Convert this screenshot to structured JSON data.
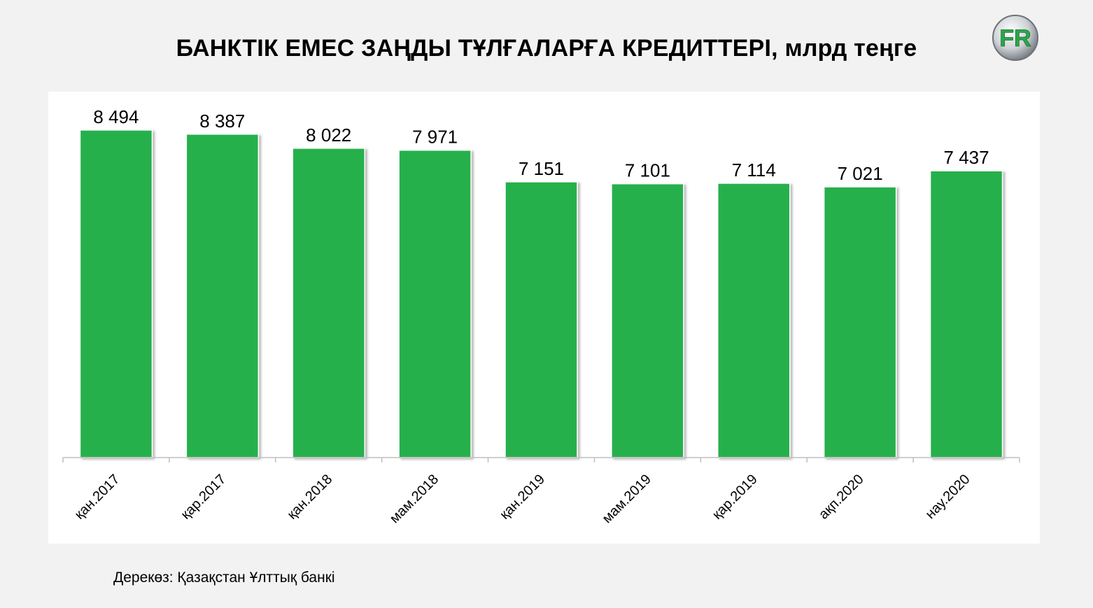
{
  "title": "БАНКТІК ЕМЕС ЗАҢДЫ ТҰЛҒАЛАРҒА КРЕДИТТЕРІ, млрд теңге",
  "source": "Дерекөз: Қазақстан Ұлттық банкі",
  "logo": {
    "letters": "FR",
    "icon": "fr-logo-icon"
  },
  "colors": {
    "bar": "#27b04b",
    "background": "#f2f2f2",
    "panel": "#ffffff"
  },
  "chart_data": {
    "type": "bar",
    "title": "БАНКТІК ЕМЕС ЗАҢДЫ ТҰЛҒАЛАРҒА КРЕДИТТЕРІ, млрд теңге",
    "xlabel": "",
    "ylabel": "",
    "categories": [
      "қан.2017",
      "қар.2017",
      "қан.2018",
      "мам.2018",
      "қан.2019",
      "мам.2019",
      "қар.2019",
      "ақп.2020",
      "нау.2020"
    ],
    "values": [
      8494,
      8387,
      8022,
      7971,
      7151,
      7101,
      7114,
      7021,
      7437
    ],
    "value_labels": [
      "8 494",
      "8 387",
      "8 022",
      "7 971",
      "7 151",
      "7 101",
      "7 114",
      "7 021",
      "7 437"
    ],
    "ylim": [
      0,
      9000
    ],
    "grid": false,
    "legend": "none"
  }
}
